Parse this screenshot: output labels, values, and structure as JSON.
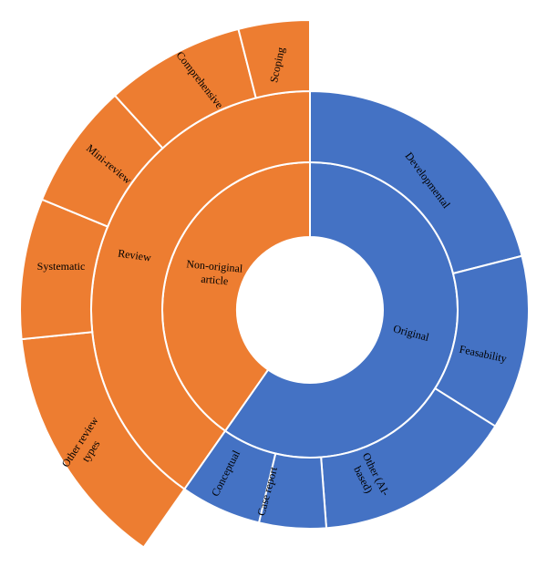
{
  "chart_data": {
    "type": "sunburst",
    "title": "",
    "colors": {
      "original": "#4472C4",
      "non_original": "#ED7D31",
      "border": "#ffffff"
    },
    "levels": [
      {
        "name": "inner",
        "segments": [
          {
            "label": "Original",
            "group": "original",
            "start_deg": 0,
            "end_deg": 215.0
          },
          {
            "label": "Non-original article",
            "group": "non_original",
            "start_deg": 215.0,
            "end_deg": 360
          }
        ]
      },
      {
        "name": "middle",
        "segments": [
          {
            "label": "",
            "group": "original",
            "start_deg": 0,
            "end_deg": 215.0
          },
          {
            "label": "Review",
            "group": "non_original",
            "start_deg": 215.0,
            "end_deg": 360
          }
        ]
      },
      {
        "name": "outer",
        "segments": [
          {
            "label": "Developmental",
            "group": "original",
            "start_deg": 0,
            "end_deg": 75.7
          },
          {
            "label": "Feasability",
            "group": "original",
            "start_deg": 75.7,
            "end_deg": 122.1
          },
          {
            "label": "Other (AI-based)",
            "group": "original",
            "start_deg": 122.1,
            "end_deg": 175.7
          },
          {
            "label": "Case report",
            "group": "original",
            "start_deg": 175.7,
            "end_deg": 193.5
          },
          {
            "label": "Conceptual",
            "group": "original",
            "start_deg": 193.5,
            "end_deg": 215.0
          },
          {
            "label": "Other review types",
            "group": "non_original",
            "start_deg": 215.0,
            "end_deg": 264.2
          },
          {
            "label": "Systematic",
            "group": "non_original",
            "start_deg": 264.2,
            "end_deg": 292.4
          },
          {
            "label": "Mini-review",
            "group": "non_original",
            "start_deg": 292.4,
            "end_deg": 317.7
          },
          {
            "label": "Comprehensive",
            "group": "non_original",
            "start_deg": 317.7,
            "end_deg": 345.7
          },
          {
            "label": "Scoping",
            "group": "non_original",
            "start_deg": 345.7,
            "end_deg": 360
          }
        ]
      }
    ],
    "labels": {
      "original": "Original",
      "non_original": "Non-original article",
      "review": "Review",
      "developmental": "Developmental",
      "feasability": "Feasability",
      "other_ai_line1": "Other (AI-",
      "other_ai_line2": "based)",
      "case_report": "Case report",
      "conceptual": "Conceptual",
      "other_review_line1": "Other review",
      "other_review_line2": "types",
      "systematic": "Systematic",
      "mini_review": "Mini-review",
      "comprehensive": "Comprehensive",
      "scoping": "Scoping",
      "non_original_line1": "Non-original",
      "non_original_line2": "article"
    }
  }
}
